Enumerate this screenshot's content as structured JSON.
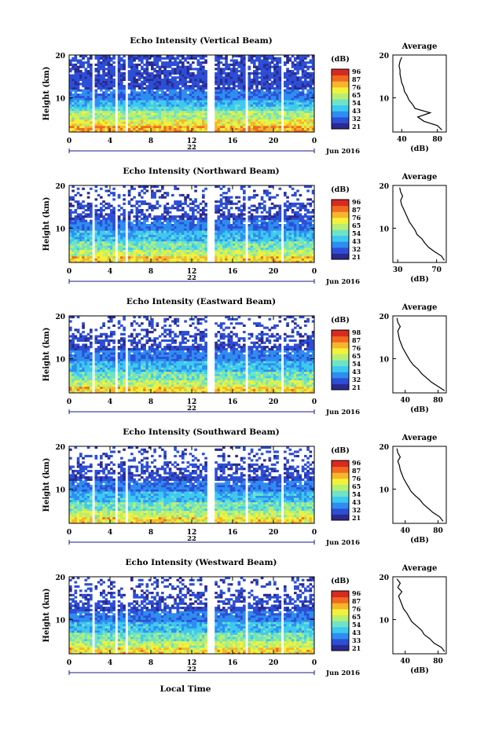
{
  "figure": {
    "xlabel": "Local Time",
    "date_label": "Jun 2016",
    "day_label": "22",
    "colorbar_unit": "(dB)",
    "avg_title": "Average",
    "avg_xlabel": "(dB)"
  },
  "colorscale": [
    "#2b2a8f",
    "#2d4fd6",
    "#2e8ef0",
    "#3ec9f0",
    "#6fe3c8",
    "#b8ef72",
    "#f2f23a",
    "#f7b52c",
    "#f06a1f",
    "#d92a20"
  ],
  "chart_data": [
    {
      "type": "heatmap",
      "title": "Echo Intensity (Vertical Beam)",
      "ylabel": "Height (km)",
      "x_ticks": [
        "0",
        "4",
        "8",
        "12",
        "16",
        "20",
        "0"
      ],
      "y_ticks": [
        "20",
        "10"
      ],
      "xlim": [
        0,
        24
      ],
      "ylim": [
        2,
        20
      ],
      "colorbar_ticks": [
        "96",
        "87",
        "76",
        "65",
        "54",
        "43",
        "32",
        "21"
      ],
      "gaps_hours": [
        [
          2.2,
          2.5
        ],
        [
          3.9,
          4.1
        ],
        [
          4.5,
          4.75
        ],
        [
          5.5,
          5.75
        ],
        [
          13.6,
          14.3
        ],
        [
          17.2,
          17.5
        ],
        [
          18.9,
          19.1
        ],
        [
          20.8,
          21.0
        ],
        [
          22.4,
          22.6
        ]
      ],
      "average": {
        "xlim": [
          30,
          90
        ],
        "x_ticks": [
          "40",
          "80"
        ],
        "heights": [
          2.5,
          3.5,
          4.5,
          5.5,
          6.5,
          7.5,
          8.5,
          9.5,
          10.5,
          11.5,
          12.5,
          13.5,
          14.5,
          15.5,
          16.5,
          17.5,
          18.5,
          19.5
        ],
        "values": [
          85,
          80,
          65,
          58,
          72,
          55,
          52,
          48,
          46,
          43,
          42,
          40,
          39,
          38,
          38,
          37,
          38,
          40
        ]
      }
    },
    {
      "type": "heatmap",
      "title": "Echo Intensity (Northward Beam)",
      "ylabel": "Height (km)",
      "x_ticks": [
        "0",
        "4",
        "8",
        "12",
        "16",
        "20",
        "0"
      ],
      "y_ticks": [
        "20",
        "10"
      ],
      "xlim": [
        0,
        24
      ],
      "ylim": [
        2,
        20
      ],
      "colorbar_ticks": [
        "96",
        "87",
        "76",
        "65",
        "54",
        "43",
        "32",
        "21"
      ],
      "gaps_hours": [
        [
          2.2,
          2.5
        ],
        [
          3.9,
          4.1
        ],
        [
          4.5,
          4.75
        ],
        [
          5.5,
          5.75
        ],
        [
          13.6,
          14.3
        ],
        [
          17.2,
          17.5
        ],
        [
          18.9,
          19.1
        ],
        [
          20.8,
          21.0
        ],
        [
          22.4,
          22.6
        ]
      ],
      "average": {
        "xlim": [
          25,
          80
        ],
        "x_ticks": [
          "30",
          "70"
        ],
        "heights": [
          2.5,
          3.5,
          4.5,
          5.5,
          6.5,
          7.5,
          8.5,
          9.5,
          10.5,
          11.5,
          12.5,
          13.5,
          14.5,
          15.5,
          16.5,
          17.5,
          18.5,
          19.5
        ],
        "values": [
          78,
          75,
          68,
          62,
          58,
          55,
          50,
          48,
          45,
          42,
          40,
          38,
          36,
          34,
          33,
          35,
          33,
          32
        ]
      }
    },
    {
      "type": "heatmap",
      "title": "Echo Intensity (Eastward Beam)",
      "ylabel": "Height (km)",
      "x_ticks": [
        "0",
        "4",
        "8",
        "12",
        "16",
        "20",
        "0"
      ],
      "y_ticks": [
        "20",
        "10"
      ],
      "xlim": [
        0,
        24
      ],
      "ylim": [
        2,
        20
      ],
      "colorbar_ticks": [
        "98",
        "87",
        "76",
        "65",
        "54",
        "43",
        "32",
        "21"
      ],
      "gaps_hours": [
        [
          2.2,
          2.5
        ],
        [
          3.9,
          4.1
        ],
        [
          4.5,
          4.75
        ],
        [
          5.5,
          5.75
        ],
        [
          13.6,
          14.3
        ],
        [
          17.2,
          17.5
        ],
        [
          18.9,
          19.1
        ],
        [
          20.8,
          21.0
        ],
        [
          22.4,
          22.6
        ]
      ],
      "average": {
        "xlim": [
          25,
          90
        ],
        "x_ticks": [
          "40",
          "80"
        ],
        "heights": [
          2.5,
          3.5,
          4.5,
          5.5,
          6.5,
          7.5,
          8.5,
          9.5,
          10.5,
          11.5,
          12.5,
          13.5,
          14.5,
          15.5,
          16.5,
          17.5,
          18.5,
          19.5
        ],
        "values": [
          88,
          80,
          72,
          66,
          60,
          56,
          50,
          46,
          43,
          40,
          37,
          35,
          33,
          32,
          31,
          34,
          31,
          30
        ]
      }
    },
    {
      "type": "heatmap",
      "title": "Echo Intensity (Southward Beam)",
      "ylabel": "Height (km)",
      "x_ticks": [
        "0",
        "4",
        "8",
        "12",
        "16",
        "20",
        "0"
      ],
      "y_ticks": [
        "20",
        "10"
      ],
      "xlim": [
        0,
        24
      ],
      "ylim": [
        2,
        20
      ],
      "colorbar_ticks": [
        "96",
        "87",
        "76",
        "65",
        "54",
        "43",
        "32",
        "21"
      ],
      "gaps_hours": [
        [
          2.2,
          2.5
        ],
        [
          3.9,
          4.1
        ],
        [
          4.5,
          4.75
        ],
        [
          5.5,
          5.75
        ],
        [
          13.6,
          14.3
        ],
        [
          17.2,
          17.5
        ],
        [
          18.9,
          19.1
        ],
        [
          20.8,
          21.0
        ],
        [
          22.4,
          22.6
        ]
      ],
      "average": {
        "xlim": [
          25,
          90
        ],
        "x_ticks": [
          "40",
          "80"
        ],
        "heights": [
          2.5,
          3.5,
          4.5,
          5.5,
          6.5,
          7.5,
          8.5,
          9.5,
          10.5,
          11.5,
          12.5,
          13.5,
          14.5,
          15.5,
          16.5,
          17.5,
          18.5,
          19.5
        ],
        "values": [
          86,
          82,
          74,
          68,
          62,
          58,
          52,
          47,
          44,
          41,
          38,
          36,
          34,
          33,
          31,
          34,
          31,
          30
        ]
      }
    },
    {
      "type": "heatmap",
      "title": "Echo Intensity (Westward Beam)",
      "ylabel": "Height (km)",
      "x_ticks": [
        "0",
        "4",
        "8",
        "12",
        "16",
        "20",
        "0"
      ],
      "y_ticks": [
        "20",
        "10"
      ],
      "xlim": [
        0,
        24
      ],
      "ylim": [
        2,
        20
      ],
      "colorbar_ticks": [
        "96",
        "87",
        "76",
        "65",
        "54",
        "43",
        "33",
        "21"
      ],
      "gaps_hours": [
        [
          2.2,
          2.5
        ],
        [
          3.9,
          4.1
        ],
        [
          4.5,
          4.75
        ],
        [
          5.5,
          5.75
        ],
        [
          13.6,
          14.3
        ],
        [
          17.2,
          17.5
        ],
        [
          18.9,
          19.1
        ],
        [
          20.8,
          21.0
        ],
        [
          22.4,
          22.6
        ]
      ],
      "average": {
        "xlim": [
          25,
          90
        ],
        "x_ticks": [
          "40",
          "80"
        ],
        "heights": [
          2.5,
          3.5,
          4.5,
          5.5,
          6.5,
          7.5,
          8.5,
          9.5,
          10.5,
          11.5,
          12.5,
          13.5,
          14.5,
          15.5,
          16.5,
          17.5,
          18.5,
          19.5
        ],
        "values": [
          88,
          84,
          75,
          70,
          63,
          60,
          54,
          48,
          45,
          42,
          38,
          36,
          34,
          32,
          36,
          31,
          34,
          30
        ]
      }
    }
  ]
}
